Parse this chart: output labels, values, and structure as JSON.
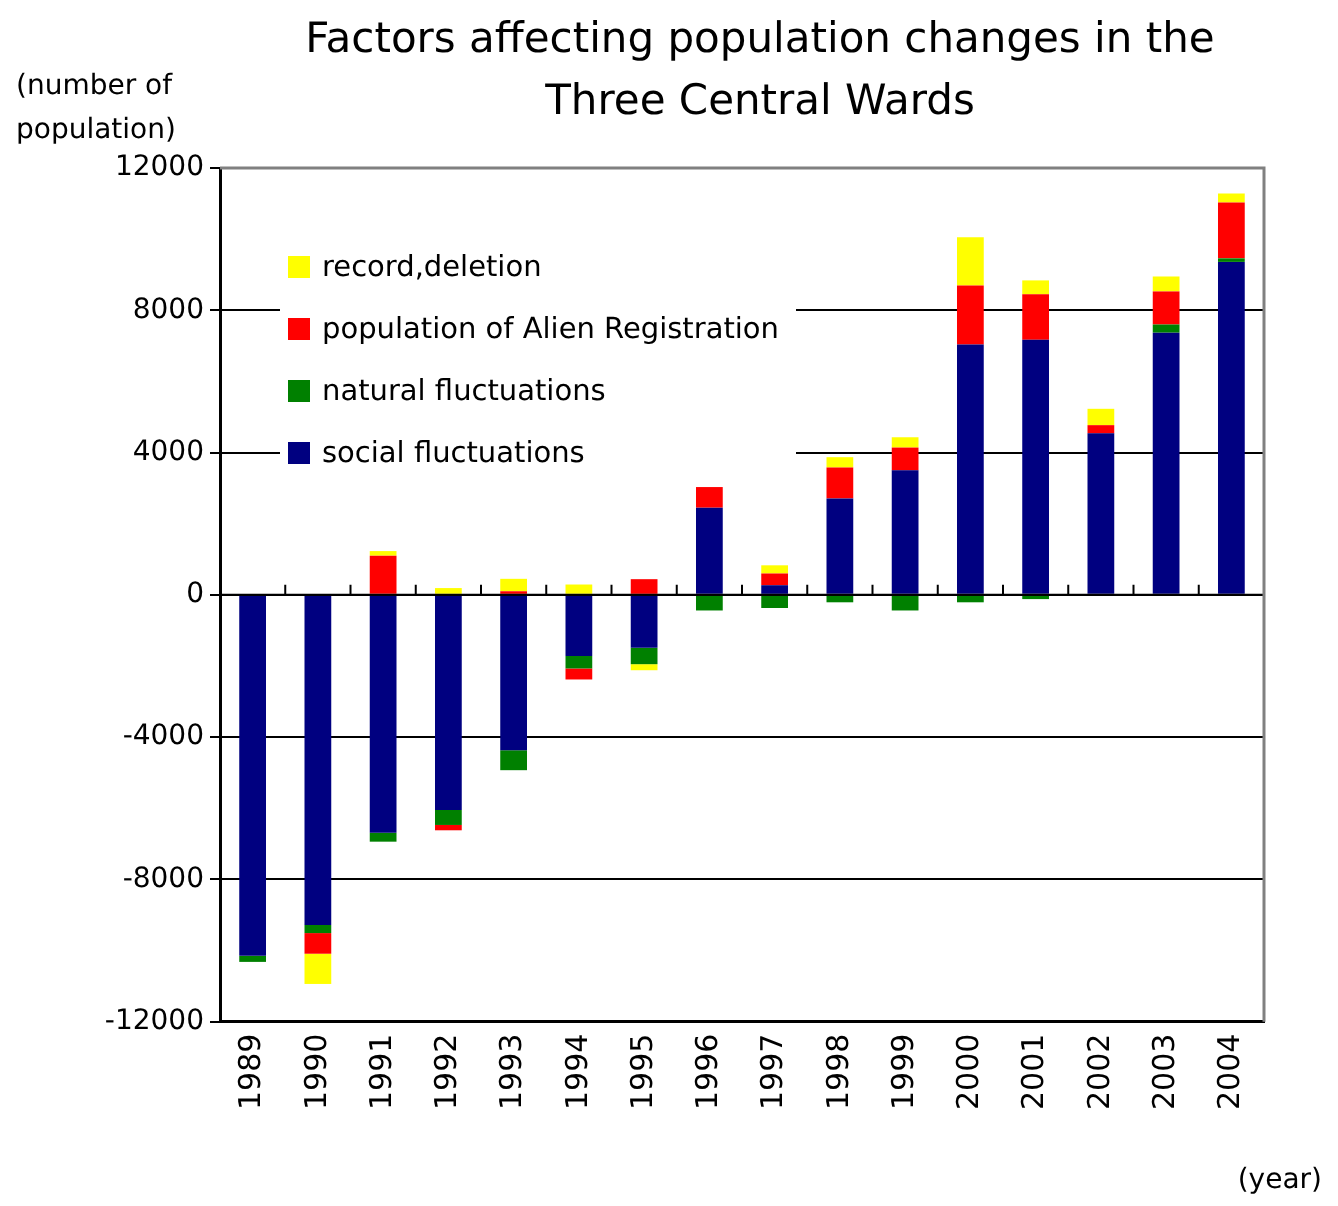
{
  "chart_data": {
    "type": "bar",
    "stacked": true,
    "title": "Factors affecting population changes in the Three Central Wards",
    "ylabel": "(number of population)",
    "xlabel": "(year)",
    "categories": [
      "1989",
      "1990",
      "1991",
      "1992",
      "1993",
      "1994",
      "1995",
      "1996",
      "1997",
      "1998",
      "1999",
      "2000",
      "2001",
      "2002",
      "2003",
      "2004"
    ],
    "series": [
      {
        "name": "social fluctuations",
        "color": "#000080",
        "values": [
          -10150,
          -9280,
          -6690,
          -6050,
          -4370,
          -1720,
          -1490,
          2450,
          270,
          2710,
          3500,
          7040,
          7170,
          4540,
          7370,
          9360
        ]
      },
      {
        "name": "natural fluctuations",
        "color": "#008000",
        "values": [
          -170,
          -230,
          -250,
          -420,
          -560,
          -350,
          -460,
          -440,
          -370,
          -210,
          -440,
          -210,
          -120,
          0,
          230,
          100
        ]
      },
      {
        "name": "population of Alien Registration",
        "color": "#ff0000",
        "values": [
          0,
          -580,
          1100,
          -150,
          100,
          -310,
          440,
          580,
          330,
          870,
          640,
          1660,
          1280,
          230,
          930,
          1570
        ]
      },
      {
        "name": "record,deletion",
        "color": "#ffff00",
        "values": [
          0,
          -850,
          130,
          190,
          350,
          290,
          -170,
          0,
          230,
          290,
          290,
          1350,
          390,
          460,
          420,
          250
        ]
      }
    ],
    "ylim": [
      -12000,
      12000
    ],
    "yticks": [
      -12000,
      -8000,
      -4000,
      0,
      4000,
      8000,
      12000
    ],
    "grid": "y",
    "legend": "top left"
  }
}
